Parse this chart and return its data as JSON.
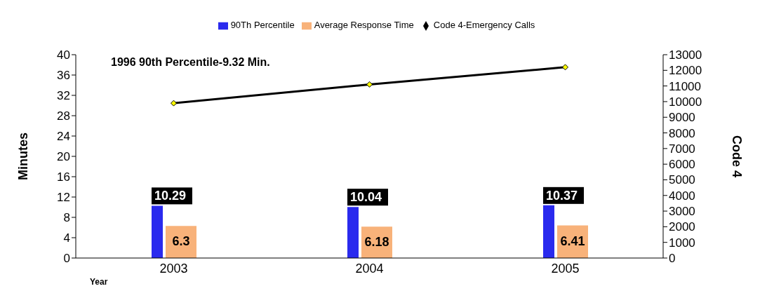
{
  "chart_data": {
    "type": "bar",
    "categories": [
      "2003",
      "2004",
      "2005"
    ],
    "xlabel": "Year",
    "ylabel": "Minutes",
    "y2label": "Code 4",
    "series": [
      {
        "name": "90Th Percentile",
        "color": "#2a2aee",
        "values": [
          10.29,
          10.04,
          10.37
        ],
        "value_labels": [
          "10.29",
          "10.04",
          "10.37"
        ]
      },
      {
        "name": "Average Response Time",
        "color": "#f8b27a",
        "values": [
          6.3,
          6.18,
          6.41
        ],
        "value_labels": [
          "6.3",
          "6.18",
          "6.41"
        ]
      },
      {
        "name": "Code 4-Emergency Calls",
        "type": "line",
        "axis": "y2",
        "color": "#000000",
        "values": [
          9900,
          11100,
          12200
        ]
      }
    ],
    "ylim": [
      0,
      40
    ],
    "yticks": [
      0,
      4,
      8,
      12,
      16,
      20,
      24,
      28,
      32,
      36,
      40
    ],
    "y2lim": [
      0,
      13000
    ],
    "y2ticks": [
      0,
      1000,
      2000,
      3000,
      4000,
      5000,
      6000,
      7000,
      8000,
      9000,
      10000,
      11000,
      12000,
      13000
    ],
    "annotations": [
      "1996 90th Percentile-9.32 Min."
    ],
    "grid": false,
    "legend": "top",
    "marker": "diamond",
    "line_style": "solid"
  }
}
